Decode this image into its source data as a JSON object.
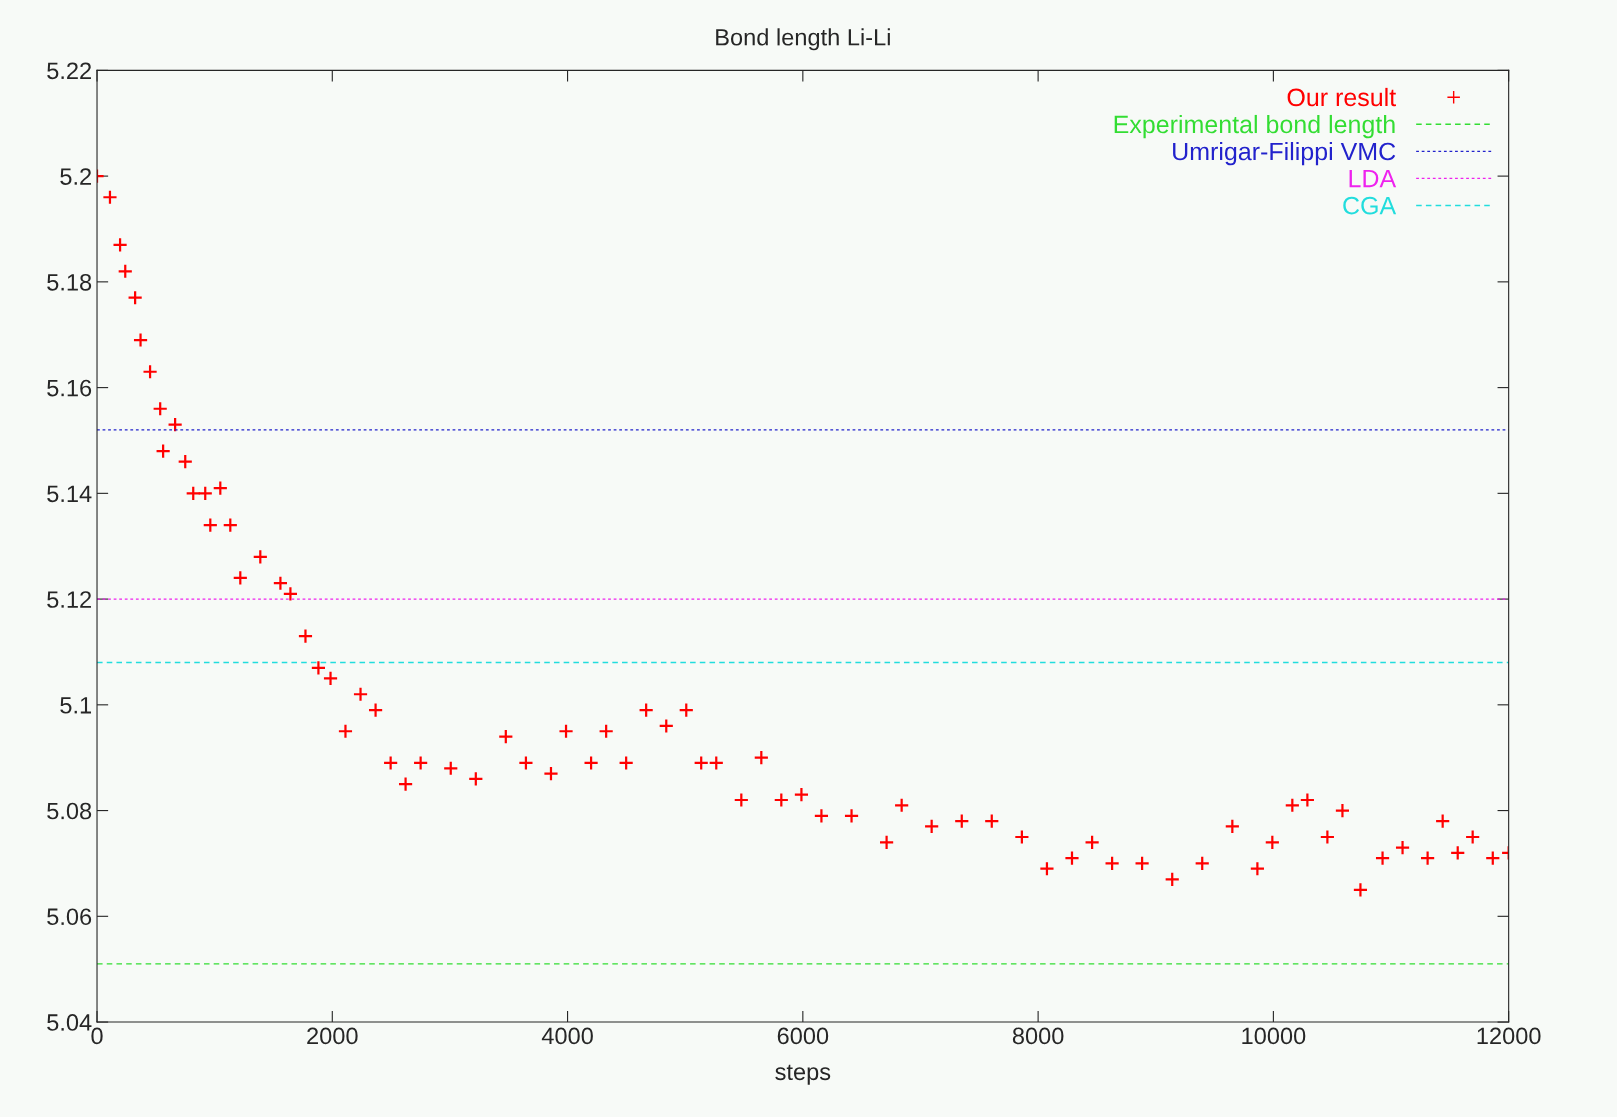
{
  "chart_data": {
    "type": "scatter",
    "title": "Bond length Li-Li",
    "xlabel": "steps",
    "xlim": [
      0,
      12000
    ],
    "xticks": [
      0,
      2000,
      4000,
      6000,
      8000,
      10000,
      12000
    ],
    "ylim": [
      5.04,
      5.22
    ],
    "yticks": [
      5.04,
      5.06,
      5.08,
      5.1,
      5.12,
      5.14,
      5.16,
      5.18,
      5.2,
      5.22
    ],
    "grid": false,
    "legend": "top right",
    "series": [
      {
        "name": "Our result",
        "marker": "cross",
        "color": "#ff0000",
        "x": [
          0,
          110,
          196,
          240,
          324,
          370,
          451,
          537,
          562,
          664,
          750,
          818,
          920,
          963,
          1048,
          1133,
          1218,
          1388,
          1559,
          1644,
          1772,
          1882,
          1985,
          2112,
          2240,
          2368,
          2496,
          2623,
          2751,
          3007,
          3220,
          3475,
          3646,
          3859,
          3987,
          4200,
          4328,
          4498,
          4668,
          4839,
          5009,
          5136,
          5264,
          5477,
          5647,
          5817,
          5988,
          6158,
          6414,
          6712,
          6840,
          7095,
          7351,
          7606,
          7862,
          8075,
          8288,
          8459,
          8629,
          8884,
          9140,
          9395,
          9651,
          9864,
          9991,
          10161,
          10289,
          10459,
          10587,
          10740,
          10928,
          11098,
          11311,
          11439,
          11567,
          11694,
          11865,
          12000
        ],
        "values": [
          5.2,
          5.196,
          5.187,
          5.182,
          5.177,
          5.169,
          5.163,
          5.156,
          5.148,
          5.153,
          5.146,
          5.14,
          5.14,
          5.134,
          5.141,
          5.134,
          5.124,
          5.128,
          5.123,
          5.121,
          5.113,
          5.107,
          5.105,
          5.095,
          5.102,
          5.099,
          5.089,
          5.085,
          5.089,
          5.088,
          5.086,
          5.094,
          5.089,
          5.087,
          5.095,
          5.089,
          5.095,
          5.089,
          5.099,
          5.096,
          5.099,
          5.089,
          5.089,
          5.082,
          5.09,
          5.082,
          5.083,
          5.079,
          5.079,
          5.074,
          5.081,
          5.077,
          5.078,
          5.078,
          5.075,
          5.069,
          5.071,
          5.074,
          5.07,
          5.07,
          5.067,
          5.07,
          5.077,
          5.069,
          5.074,
          5.081,
          5.082,
          5.075,
          5.08,
          5.065,
          5.071,
          5.073,
          5.071,
          5.078,
          5.072,
          5.075,
          5.071,
          5.072
        ]
      },
      {
        "name": "Experimental bond length",
        "type": "line",
        "line_style": "dashed",
        "color": "#33dd33",
        "x": [
          0,
          12000
        ],
        "values": [
          5.051,
          5.051
        ]
      },
      {
        "name": "Umrigar-Filippi VMC",
        "type": "line",
        "line_style": "dotted",
        "color": "#2222cc",
        "x": [
          0,
          12000
        ],
        "values": [
          5.152,
          5.152
        ]
      },
      {
        "name": "LDA",
        "type": "line",
        "line_style": "dotted",
        "color": "#ee22ee",
        "x": [
          0,
          12000
        ],
        "values": [
          5.12,
          5.12
        ]
      },
      {
        "name": "CGA",
        "type": "line",
        "line_style": "dashed",
        "color": "#22dddd",
        "x": [
          0,
          12000
        ],
        "values": [
          5.108,
          5.108
        ]
      }
    ]
  }
}
